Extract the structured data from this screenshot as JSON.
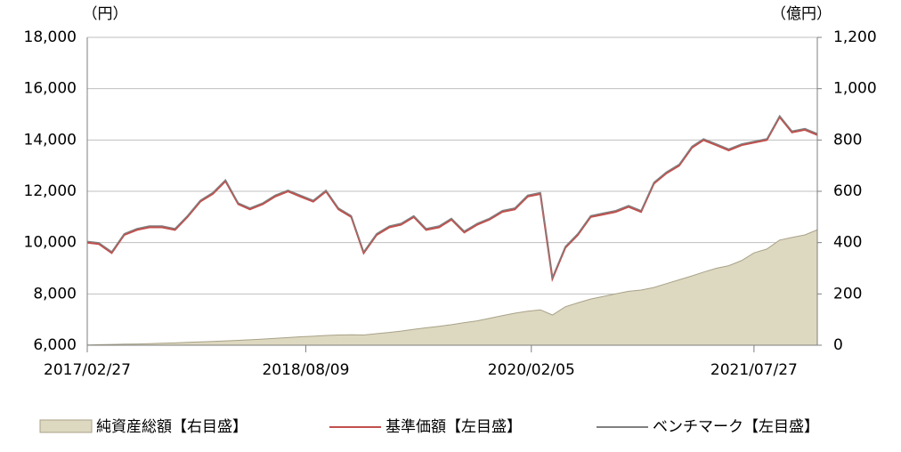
{
  "chart_data": {
    "type": "line",
    "y_unit": "（円）",
    "y2_unit": "（億円）",
    "x": [
      "2017/02/27",
      "2017/03/27",
      "2017/04/27",
      "2017/05/27",
      "2017/06/27",
      "2017/07/27",
      "2017/08/27",
      "2017/09/27",
      "2017/10/27",
      "2017/11/27",
      "2017/12/27",
      "2018/01/27",
      "2018/02/27",
      "2018/03/27",
      "2018/04/27",
      "2018/05/27",
      "2018/06/27",
      "2018/07/27",
      "2018/08/27",
      "2018/09/27",
      "2018/10/27",
      "2018/11/27",
      "2018/12/27",
      "2019/01/27",
      "2019/02/27",
      "2019/03/27",
      "2019/04/27",
      "2019/05/27",
      "2019/06/27",
      "2019/07/27",
      "2019/08/27",
      "2019/09/27",
      "2019/10/27",
      "2019/11/27",
      "2019/12/27",
      "2020/01/27",
      "2020/02/27",
      "2020/03/27",
      "2020/04/27",
      "2020/05/27",
      "2020/06/27",
      "2020/07/27",
      "2020/08/27",
      "2020/09/27",
      "2020/10/27",
      "2020/11/27",
      "2020/12/27",
      "2021/01/27",
      "2021/02/27",
      "2021/03/27",
      "2021/04/27",
      "2021/05/27",
      "2021/06/27",
      "2021/07/27",
      "2021/08/27",
      "2021/09/27",
      "2021/10/27",
      "2021/11/27",
      "2021/12/27"
    ],
    "xlim": [
      "2017/02/27",
      "2021/12/27"
    ],
    "xticks": [
      "2017/02/27",
      "2018/08/09",
      "2020/02/05",
      "2021/07/27"
    ],
    "ylim": [
      6000,
      18000
    ],
    "yticks": [
      {
        "value": 6000,
        "label": "6,000"
      },
      {
        "value": 8000,
        "label": "8,000"
      },
      {
        "value": 10000,
        "label": "10,000"
      },
      {
        "value": 12000,
        "label": "12,000"
      },
      {
        "value": 14000,
        "label": "14,000"
      },
      {
        "value": 16000,
        "label": "16,000"
      },
      {
        "value": 18000,
        "label": "18,000"
      }
    ],
    "y2lim": [
      0,
      1200
    ],
    "y2ticks": [
      0,
      200,
      400,
      600,
      800,
      {
        "value": 1000,
        "label": "1,000"
      },
      {
        "value": 1200,
        "label": "1,200"
      }
    ],
    "grid": true,
    "series": [
      {
        "name": "純資産総額【右目盛】",
        "kind": "area",
        "axis": "y2",
        "color": "#ddd8c0",
        "values": [
          1,
          2,
          3,
          4,
          5,
          6,
          8,
          9,
          11,
          13,
          15,
          17,
          19,
          21,
          24,
          27,
          30,
          33,
          35,
          38,
          40,
          41,
          40,
          45,
          50,
          55,
          62,
          68,
          74,
          80,
          88,
          95,
          105,
          115,
          125,
          133,
          138,
          118,
          150,
          165,
          180,
          190,
          200,
          210,
          215,
          225,
          240,
          255,
          270,
          285,
          300,
          310,
          330,
          360,
          375,
          410,
          420,
          430,
          450
        ]
      },
      {
        "name": "基準価額【左目盛】",
        "kind": "line",
        "color": "#c0504d",
        "values": [
          10000,
          9950,
          9600,
          10300,
          10500,
          10600,
          10600,
          10500,
          11000,
          11600,
          11900,
          12400,
          11500,
          11300,
          11500,
          11800,
          12000,
          11800,
          11600,
          12000,
          11300,
          11000,
          9600,
          10300,
          10600,
          10700,
          11000,
          10500,
          10600,
          10900,
          10400,
          10700,
          10900,
          11200,
          11300,
          11800,
          11900,
          8600,
          9800,
          10300,
          11000,
          11100,
          11200,
          11400,
          11200,
          12300,
          12700,
          13000,
          13700,
          14000,
          13800,
          13600,
          13800,
          13900,
          14000,
          14900,
          14300,
          14400,
          14200
        ]
      },
      {
        "name": "ベンチマーク【左目盛】",
        "kind": "line",
        "color": "#808080",
        "values": [
          10050,
          10000,
          9650,
          10350,
          10550,
          10650,
          10650,
          10550,
          11050,
          11650,
          11950,
          12450,
          11550,
          11350,
          11550,
          11850,
          12050,
          11850,
          11650,
          12050,
          11350,
          11050,
          9650,
          10350,
          10650,
          10750,
          11050,
          10550,
          10650,
          10950,
          10450,
          10750,
          10950,
          11250,
          11350,
          11850,
          11950,
          8650,
          9850,
          10350,
          11050,
          11150,
          11250,
          11450,
          11250,
          12350,
          12750,
          13050,
          13750,
          14050,
          13850,
          13650,
          13850,
          13950,
          14050,
          14950,
          14350,
          14450,
          14250
        ]
      }
    ]
  }
}
